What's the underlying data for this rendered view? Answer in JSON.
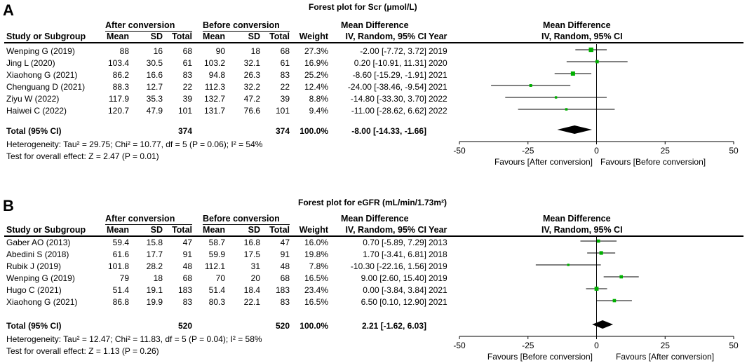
{
  "panels": [
    {
      "letter": "A",
      "title": "Forest plot for Scr (μmol/L)",
      "group1": "After conversion",
      "group2": "Before conversion",
      "col": {
        "study": "Study or Subgroup",
        "mean": "Mean",
        "sd": "SD",
        "total": "Total",
        "weight": "Weight",
        "md_head": "Mean Difference",
        "md_sub": "IV, Random, 95% CI",
        "year": "Year"
      },
      "rows": [
        {
          "study": "Wenping G (2019)",
          "m1": "88",
          "sd1": "16",
          "n1": "68",
          "m2": "90",
          "sd2": "18",
          "n2": "68",
          "weight": "27.3%",
          "ci": "-2.00 [-7.72, 3.72]",
          "year": "2019"
        },
        {
          "study": "Jing L (2020)",
          "m1": "103.4",
          "sd1": "30.5",
          "n1": "61",
          "m2": "103.2",
          "sd2": "32.1",
          "n2": "61",
          "weight": "16.9%",
          "ci": "0.20 [-10.91, 11.31]",
          "year": "2020"
        },
        {
          "study": "Xiaohong G (2021)",
          "m1": "86.2",
          "sd1": "16.6",
          "n1": "83",
          "m2": "94.8",
          "sd2": "26.3",
          "n2": "83",
          "weight": "25.2%",
          "ci": "-8.60 [-15.29, -1.91]",
          "year": "2021"
        },
        {
          "study": "Chenguang D (2021)",
          "m1": "88.3",
          "sd1": "12.7",
          "n1": "22",
          "m2": "112.3",
          "sd2": "32.2",
          "n2": "22",
          "weight": "12.4%",
          "ci": "-24.00 [-38.46, -9.54]",
          "year": "2021"
        },
        {
          "study": "Ziyu W (2022)",
          "m1": "117.9",
          "sd1": "35.3",
          "n1": "39",
          "m2": "132.7",
          "sd2": "47.2",
          "n2": "39",
          "weight": "8.8%",
          "ci": "-14.80 [-33.30, 3.70]",
          "year": "2022"
        },
        {
          "study": "Haiwei C (2022)",
          "m1": "120.7",
          "sd1": "47.9",
          "n1": "101",
          "m2": "131.7",
          "sd2": "76.6",
          "n2": "101",
          "weight": "9.4%",
          "ci": "-11.00 [-28.62, 6.62]",
          "year": "2022"
        }
      ],
      "total": {
        "label": "Total (95% CI)",
        "n1": "374",
        "n2": "374",
        "weight": "100.0%",
        "ci": "-8.00 [-14.33, -1.66]"
      },
      "heterogeneity": "Heterogeneity: Tau² = 29.75; Chi² = 10.77, df = 5 (P = 0.06); I² = 54%",
      "overall": "Test for overall effect: Z = 2.47 (P = 0.01)",
      "favours_left": "Favours [After conversion]",
      "favours_right": "Favours [Before conversion]"
    },
    {
      "letter": "B",
      "title": "Forest plot for eGFR (mL/min/1.73m²)",
      "group1": "After conversion",
      "group2": "Before conversion",
      "col": {
        "study": "Study or Subgroup",
        "mean": "Mean",
        "sd": "SD",
        "total": "Total",
        "weight": "Weight",
        "md_head": "Mean Difference",
        "md_sub": "IV, Random, 95% CI",
        "year": "Year"
      },
      "rows": [
        {
          "study": "Gaber AO (2013)",
          "m1": "59.4",
          "sd1": "15.8",
          "n1": "47",
          "m2": "58.7",
          "sd2": "16.8",
          "n2": "47",
          "weight": "16.0%",
          "ci": "0.70 [-5.89, 7.29]",
          "year": "2013"
        },
        {
          "study": "Abedini S (2018)",
          "m1": "61.6",
          "sd1": "17.7",
          "n1": "91",
          "m2": "59.9",
          "sd2": "17.5",
          "n2": "91",
          "weight": "19.8%",
          "ci": "1.70 [-3.41, 6.81]",
          "year": "2018"
        },
        {
          "study": "Rubik J (2019)",
          "m1": "101.8",
          "sd1": "28.2",
          "n1": "48",
          "m2": "112.1",
          "sd2": "31",
          "n2": "48",
          "weight": "7.8%",
          "ci": "-10.30 [-22.16, 1.56]",
          "year": "2019"
        },
        {
          "study": "Wenping G (2019)",
          "m1": "79",
          "sd1": "18",
          "n1": "68",
          "m2": "70",
          "sd2": "20",
          "n2": "68",
          "weight": "16.5%",
          "ci": "9.00 [2.60, 15.40]",
          "year": "2019"
        },
        {
          "study": "Hugo C (2021)",
          "m1": "51.4",
          "sd1": "19.1",
          "n1": "183",
          "m2": "51.4",
          "sd2": "18.4",
          "n2": "183",
          "weight": "23.4%",
          "ci": "0.00 [-3.84, 3.84]",
          "year": "2021"
        },
        {
          "study": "Xiaohong G (2021)",
          "m1": "86.8",
          "sd1": "19.9",
          "n1": "83",
          "m2": "80.3",
          "sd2": "22.1",
          "n2": "83",
          "weight": "16.5%",
          "ci": "6.50 [0.10, 12.90]",
          "year": "2021"
        }
      ],
      "total": {
        "label": "Total (95% CI)",
        "n1": "520",
        "n2": "520",
        "weight": "100.0%",
        "ci": "2.21 [-1.62, 6.03]"
      },
      "heterogeneity": "Heterogeneity: Tau² = 12.47; Chi² = 11.83, df = 5 (P = 0.04); I² = 58%",
      "overall": "Test for overall effect: Z = 1.13 (P = 0.26)",
      "favours_left": "Favours [Before conversion]",
      "favours_right": "Favours [After conversion]"
    }
  ],
  "chart_data": [
    {
      "type": "forest",
      "title": "Forest plot for Scr (μmol/L)",
      "xlim": [
        -50,
        50
      ],
      "xticks": [
        -50,
        -25,
        0,
        25,
        50
      ],
      "xtick_labels": [
        "-50",
        "-25",
        "0",
        "25",
        "50"
      ],
      "marker_color": "#00b000",
      "studies": [
        {
          "study": "Wenping G (2019)",
          "md": -2.0,
          "lo": -7.72,
          "hi": 3.72,
          "weight": 27.3
        },
        {
          "study": "Jing L (2020)",
          "md": 0.2,
          "lo": -10.91,
          "hi": 11.31,
          "weight": 16.9
        },
        {
          "study": "Xiaohong G (2021)",
          "md": -8.6,
          "lo": -15.29,
          "hi": -1.91,
          "weight": 25.2
        },
        {
          "study": "Chenguang D (2021)",
          "md": -24.0,
          "lo": -38.46,
          "hi": -9.54,
          "weight": 12.4
        },
        {
          "study": "Ziyu W (2022)",
          "md": -14.8,
          "lo": -33.3,
          "hi": 3.7,
          "weight": 8.8
        },
        {
          "study": "Haiwei C (2022)",
          "md": -11.0,
          "lo": -28.62,
          "hi": 6.62,
          "weight": 9.4
        }
      ],
      "pooled": {
        "md": -8.0,
        "lo": -14.33,
        "hi": -1.66
      }
    },
    {
      "type": "forest",
      "title": "Forest plot for eGFR (mL/min/1.73m²)",
      "xlim": [
        -50,
        50
      ],
      "xticks": [
        -50,
        -25,
        0,
        25,
        50
      ],
      "xtick_labels": [
        "-50",
        "-25",
        "0",
        "25",
        "50"
      ],
      "marker_color": "#00b000",
      "studies": [
        {
          "study": "Gaber AO (2013)",
          "md": 0.7,
          "lo": -5.89,
          "hi": 7.29,
          "weight": 16.0
        },
        {
          "study": "Abedini S (2018)",
          "md": 1.7,
          "lo": -3.41,
          "hi": 6.81,
          "weight": 19.8
        },
        {
          "study": "Rubik J (2019)",
          "md": -10.3,
          "lo": -22.16,
          "hi": 1.56,
          "weight": 7.8
        },
        {
          "study": "Wenping G (2019)",
          "md": 9.0,
          "lo": 2.6,
          "hi": 15.4,
          "weight": 16.5
        },
        {
          "study": "Hugo C (2021)",
          "md": 0.0,
          "lo": -3.84,
          "hi": 3.84,
          "weight": 23.4
        },
        {
          "study": "Xiaohong G (2021)",
          "md": 6.5,
          "lo": 0.1,
          "hi": 12.9,
          "weight": 16.5
        }
      ],
      "pooled": {
        "md": 2.21,
        "lo": -1.62,
        "hi": 6.03
      }
    }
  ]
}
